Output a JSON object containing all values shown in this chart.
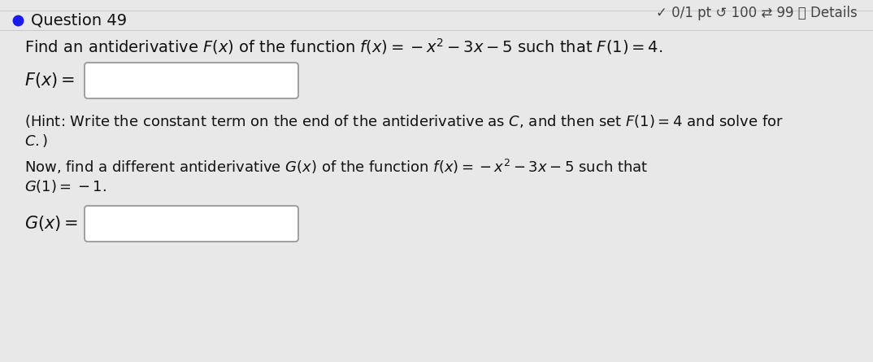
{
  "background_color": "#e8e8e8",
  "header_text": "✓ 0/1 pt ↹ 100 ⇄ 99 ⓘ Details",
  "question_label": "Question 49",
  "bullet_color": "#1a1aee",
  "box_color": "#ffffff",
  "box_border": "#999999",
  "text_color": "#111111",
  "header_color": "#444444",
  "hint_color": "#222222",
  "font_size_header": 12,
  "font_size_question": 14,
  "font_size_main": 14,
  "font_size_hint": 13
}
